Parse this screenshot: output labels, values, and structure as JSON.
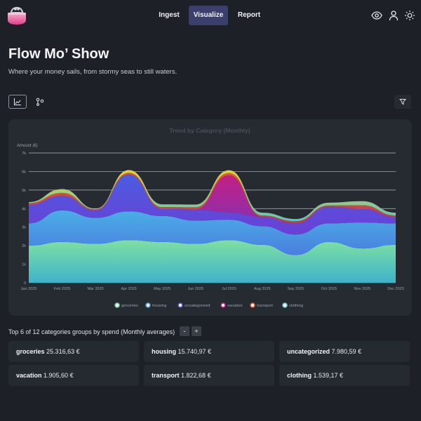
{
  "nav": {
    "logo_icon": "coin-purse-icon",
    "tabs": [
      {
        "label": "Ingest",
        "active": false
      },
      {
        "label": "Visualize",
        "active": true
      },
      {
        "label": "Report",
        "active": false
      }
    ],
    "right_icons": [
      "eye-icon",
      "user-icon",
      "sun-icon"
    ]
  },
  "page": {
    "title": "Flow Mo’ Show",
    "subtitle": "Where your money sails, from stormy seas to still waters."
  },
  "toolbar": {
    "left_buttons": [
      {
        "icon": "area-chart-icon",
        "active": true
      },
      {
        "icon": "sankey-flow-icon",
        "active": false
      }
    ],
    "filter_icon": "filter-icon"
  },
  "chart_data": {
    "type": "area",
    "stacked": true,
    "title": "Trend by Category (Monthly)",
    "ylabel": "Amount (€)",
    "xlabel": "",
    "x": [
      "Jan 2025",
      "Feb 2025",
      "Mar 2025",
      "Apr 2025",
      "May 2025",
      "Jun 2025",
      "Jul 2025",
      "Aug 2025",
      "Sep 2025",
      "Oct 2025",
      "Nov 2025",
      "Dec 2025"
    ],
    "yticks": [
      "0",
      "1k",
      "2k",
      "3k",
      "4k",
      "5k",
      "6k",
      "7k"
    ],
    "ylim": [
      0,
      7000
    ],
    "grid": true,
    "legend_position": "bottom",
    "series": [
      {
        "name": "groceries",
        "color": "#6fd1a5",
        "values": [
          2000,
          2200,
          2100,
          2300,
          2200,
          2100,
          2300,
          2050,
          1500,
          2200,
          1850,
          2050
        ]
      },
      {
        "name": "housing",
        "color": "#4f9fe0",
        "values": [
          1200,
          1700,
          1400,
          1550,
          1400,
          1250,
          1100,
          1000,
          1100,
          1000,
          1400,
          1150
        ]
      },
      {
        "name": "uncategorized",
        "color": "#5b47d6",
        "values": [
          1000,
          800,
          400,
          2000,
          400,
          600,
          400,
          500,
          600,
          900,
          750,
          350
        ]
      },
      {
        "name": "vacation",
        "color": "#c2208a",
        "values": [
          0,
          0,
          0,
          0,
          0,
          0,
          2000,
          0,
          0,
          0,
          0,
          0
        ]
      },
      {
        "name": "transport",
        "color": "#e0563a",
        "values": [
          100,
          150,
          60,
          80,
          80,
          120,
          120,
          80,
          120,
          70,
          180,
          80
        ]
      },
      {
        "name": "clothing",
        "color": "#6fc9d8",
        "values": [
          50,
          200,
          40,
          150,
          150,
          150,
          150,
          150,
          120,
          150,
          220,
          150
        ]
      }
    ]
  },
  "summary": {
    "text": "Top 6 of 12 categories groups by spend (Monthly averages)",
    "minus": "-",
    "plus": "+"
  },
  "stats": [
    {
      "name": "groceries",
      "value": "25.316,63 €"
    },
    {
      "name": "housing",
      "value": "15.740,97 €"
    },
    {
      "name": "uncategorized",
      "value": "7.980,59 €"
    },
    {
      "name": "vacation",
      "value": "1.905,60 €"
    },
    {
      "name": "transport",
      "value": "1.822,68 €"
    },
    {
      "name": "clothing",
      "value": "1.539,17 €"
    }
  ]
}
